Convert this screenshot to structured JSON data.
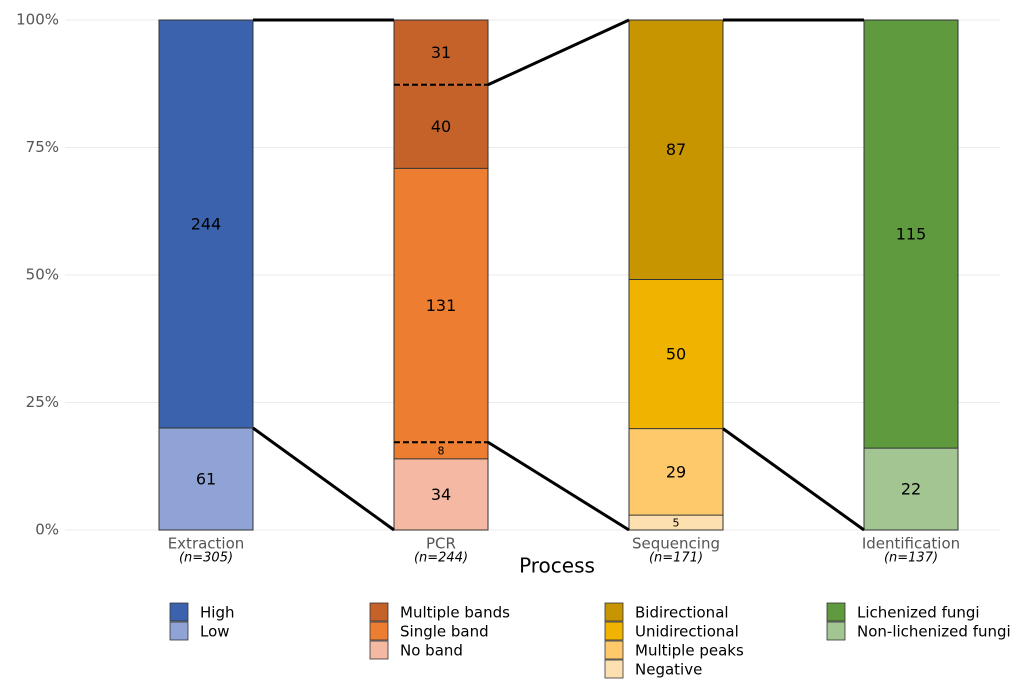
{
  "chart_data": {
    "type": "stacked_percent_flow",
    "x_label": "Process",
    "ylim": [
      0,
      100
    ],
    "yticks": [
      {
        "value": 0,
        "label": "0%"
      },
      {
        "value": 25,
        "label": "25%"
      },
      {
        "value": 50,
        "label": "50%"
      },
      {
        "value": 75,
        "label": "75%"
      },
      {
        "value": 100,
        "label": "100%"
      }
    ],
    "grid": true,
    "groups": [
      {
        "category": "Extraction",
        "note": "(n=305)",
        "segments": [
          {
            "name": "High",
            "color": "#3b63ad",
            "value": 244,
            "passes": true
          },
          {
            "name": "Low",
            "color": "#8fa3d6",
            "value": 61
          }
        ]
      },
      {
        "category": "PCR",
        "note": "(n=244)",
        "segments": [
          {
            "name": "Multiple bands",
            "color": "#c4622a",
            "value": 31
          },
          {
            "name": "Multiple bands",
            "color": "#c4622a",
            "value": 40,
            "passes": true
          },
          {
            "name": "Single band",
            "color": "#ed7d31",
            "value": 131,
            "passes": true
          },
          {
            "name": "Single band",
            "color": "#ed7d31",
            "value": 8
          },
          {
            "name": "No band",
            "color": "#f5b8a3",
            "value": 34
          }
        ]
      },
      {
        "category": "Sequencing",
        "note": "(n=171)",
        "segments": [
          {
            "name": "Bidirectional",
            "color": "#c79500",
            "value": 87,
            "passes": true
          },
          {
            "name": "Unidirectional",
            "color": "#f0b400",
            "value": 50,
            "passes": true
          },
          {
            "name": "Multiple peaks",
            "color": "#fdc96b",
            "value": 29
          },
          {
            "name": "Negative",
            "color": "#fde0b0",
            "value": 5
          }
        ]
      },
      {
        "category": "Identification",
        "note": "(n=137)",
        "segments": [
          {
            "name": "Lichenized fungi",
            "color": "#5f9a3e",
            "value": 115
          },
          {
            "name": "Non-lichenized fungi",
            "color": "#a2c592",
            "value": 22
          }
        ]
      }
    ]
  }
}
